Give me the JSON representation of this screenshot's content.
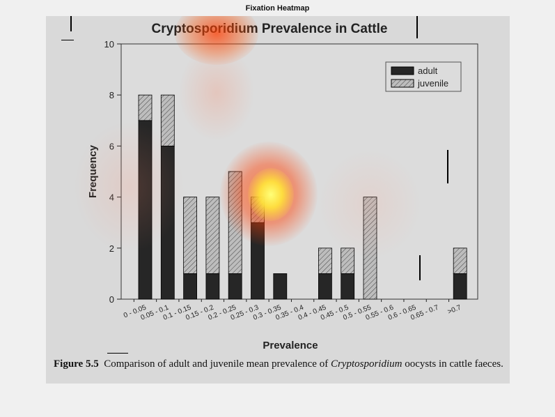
{
  "window": {
    "title": "Fixation Heatmap"
  },
  "chart_data": {
    "type": "bar",
    "stacked": true,
    "title": "Cryptosporidium Prevalence in Cattle",
    "xlabel": "Prevalence",
    "ylabel": "Frequency",
    "ylim": [
      0,
      10
    ],
    "yticks": [
      0,
      2,
      4,
      6,
      8,
      10
    ],
    "categories": [
      "0 - 0.05",
      "0.05 - 0.1",
      "0.1 - 0.15",
      "0.15 - 0.2",
      "0.2 - 0.25",
      "0.25 - 0.3",
      "0.3 - 0.35",
      "0.35 - 0.4",
      "0.4 - 0.45",
      "0.45 - 0.5",
      "0.5 - 0.55",
      "0.55 - 0.6",
      "0.6 - 0.65",
      "0.65 - 0.7",
      ">0.7"
    ],
    "series": [
      {
        "name": "adult",
        "values": [
          7,
          6,
          1,
          1,
          1,
          3,
          1,
          0,
          1,
          1,
          0,
          0,
          0,
          0,
          1
        ],
        "color": "#262626"
      },
      {
        "name": "juvenile",
        "values": [
          1,
          2,
          3,
          3,
          4,
          1,
          0,
          0,
          1,
          1,
          4,
          0,
          0,
          0,
          1
        ],
        "color": "#bdbdbd",
        "pattern": "hatched"
      }
    ],
    "grid": false,
    "legend_position": "top-right"
  },
  "caption": {
    "label": "Figure 5.5",
    "text_before": "Comparison of adult and juvenile mean prevalence of",
    "italic": "Cryptosporidium",
    "text_after": "oocysts in cattle faeces."
  },
  "heatmap": {
    "hotspot_color": "#ffff66",
    "outer_color": "#ff3300"
  }
}
